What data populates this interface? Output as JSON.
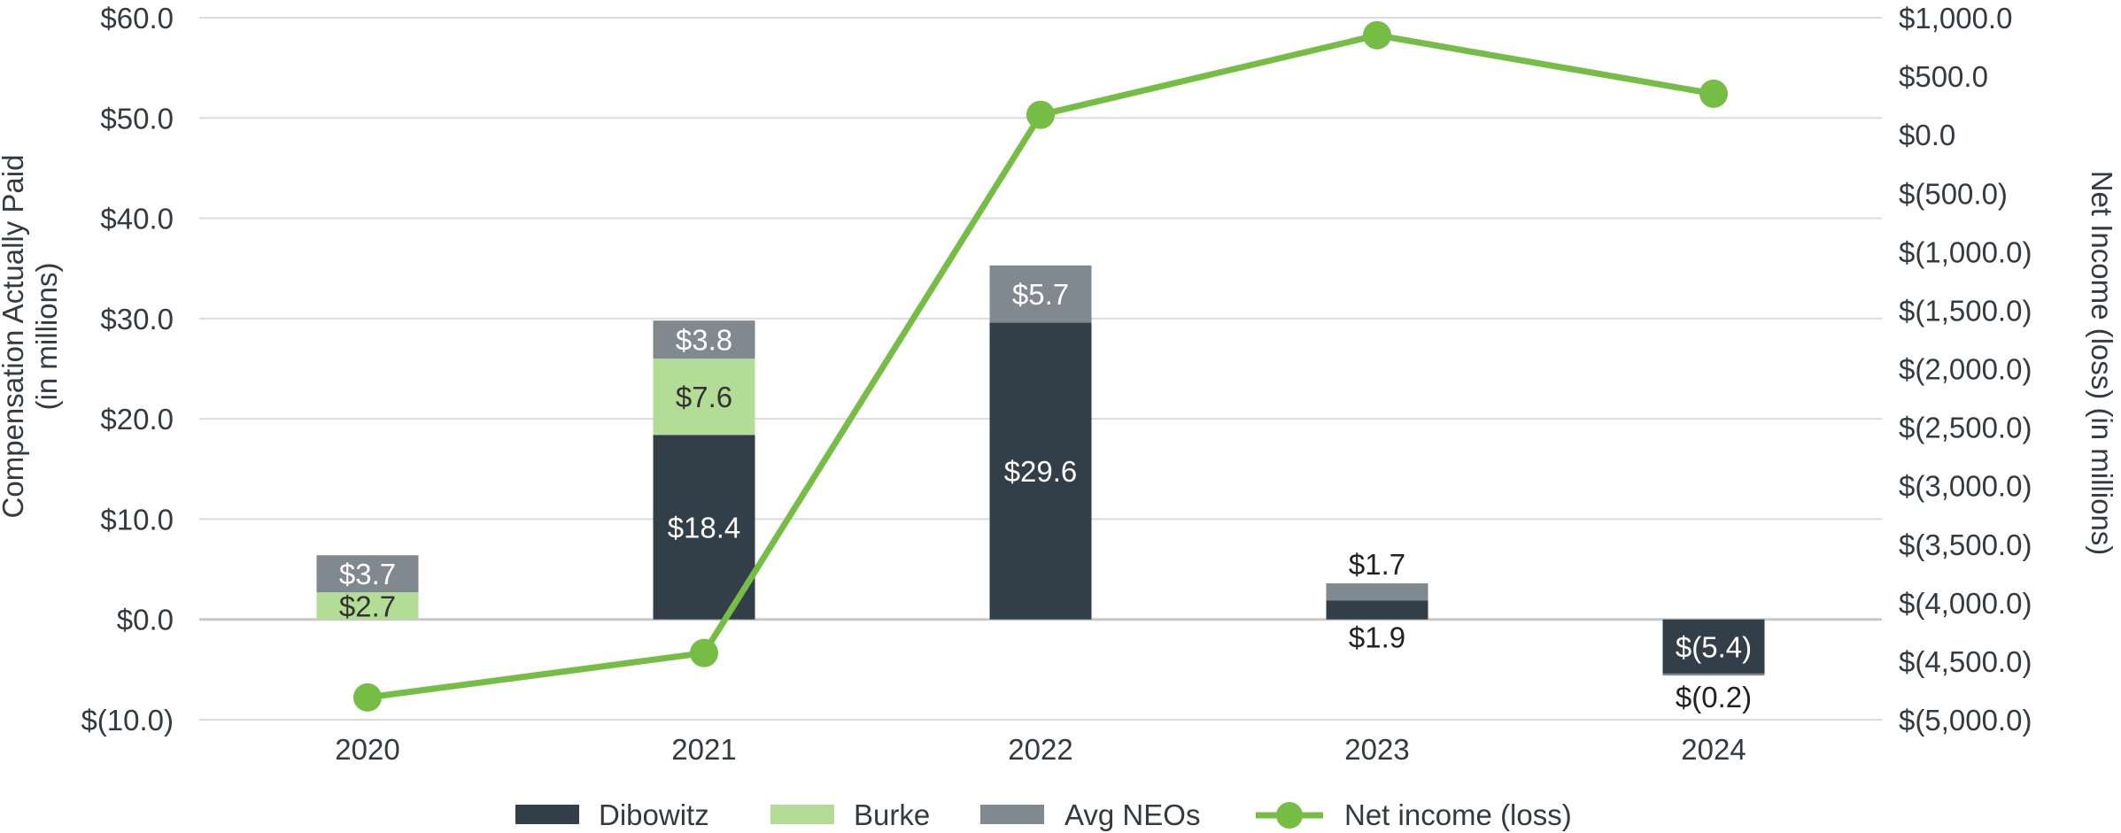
{
  "chart_data": {
    "type": "bar",
    "stacked": true,
    "categories": [
      "2020",
      "2021",
      "2022",
      "2023",
      "2024"
    ],
    "series": [
      {
        "name": "Dibowitz",
        "color": "#333f48",
        "values": [
          0,
          18.4,
          29.6,
          1.9,
          -5.4
        ],
        "labels": [
          "",
          "$18.4",
          "$29.6",
          "$1.9",
          "$(5.4)"
        ]
      },
      {
        "name": "Burke",
        "color": "#b3dc96",
        "values": [
          2.7,
          7.6,
          0,
          0,
          0
        ],
        "labels": [
          "$2.7",
          "$7.6",
          "",
          "",
          ""
        ]
      },
      {
        "name": "Avg NEOs",
        "color": "#808890",
        "values": [
          3.7,
          3.8,
          5.7,
          1.7,
          -0.2
        ],
        "labels": [
          "$3.7",
          "$3.8",
          "$5.7",
          "$1.7",
          "$(0.2)"
        ]
      }
    ],
    "line_series": {
      "name": "Net income (loss)",
      "color": "#76bd46",
      "values": [
        -4810,
        -4430,
        170,
        850,
        350
      ]
    },
    "left_axis": {
      "title_line1": "Compensation Actually Paid",
      "title_line2": "(in millions)",
      "ylim": [
        -10,
        60
      ],
      "ticks": [
        -10,
        0,
        10,
        20,
        30,
        40,
        50,
        60
      ],
      "tick_labels": [
        "$(10.0)",
        "$0.0",
        "$10.0",
        "$20.0",
        "$30.0",
        "$40.0",
        "$50.0",
        "$60.0"
      ]
    },
    "right_axis": {
      "title": "Net Income (loss)  (in millions)",
      "ylim": [
        -5000,
        1000
      ],
      "ticks": [
        -5000,
        -4500,
        -4000,
        -3500,
        -3000,
        -2500,
        -2000,
        -1500,
        -1000,
        -500,
        0,
        500,
        1000
      ],
      "tick_labels": [
        "$(5,000.0)",
        "$(4,500.0)",
        "$(4,000.0)",
        "$(3,500.0)",
        "$(3,000.0)",
        "$(2,500.0)",
        "$(2,000.0)",
        "$(1,500.0)",
        "$(1,000.0)",
        "$(500.0)",
        "$0.0",
        "$500.0",
        "$1,000.0"
      ]
    },
    "legend": {
      "position": "bottom",
      "items": [
        "Dibowitz",
        "Burke",
        "Avg NEOs",
        "Net income (loss)"
      ]
    },
    "grid": true
  }
}
